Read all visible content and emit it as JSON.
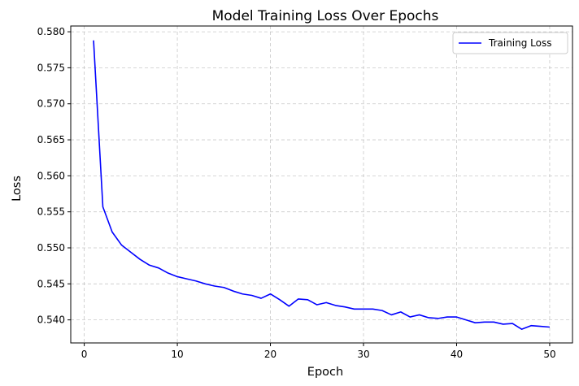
{
  "chart_data": {
    "type": "line",
    "title": "Model Training Loss Over Epochs",
    "xlabel": "Epoch",
    "ylabel": "Loss",
    "xlim": [
      -1.45,
      52.45
    ],
    "ylim": [
      0.5368,
      0.5808
    ],
    "xticks": [
      0,
      10,
      20,
      30,
      40,
      50
    ],
    "yticks": [
      0.54,
      0.545,
      0.55,
      0.555,
      0.56,
      0.565,
      0.57,
      0.575,
      0.58
    ],
    "ytick_labels": [
      "0.540",
      "0.545",
      "0.550",
      "0.555",
      "0.560",
      "0.565",
      "0.570",
      "0.575",
      "0.580"
    ],
    "grid": true,
    "legend_position": "top-right",
    "series": [
      {
        "name": "Training Loss",
        "color": "#0000ff",
        "x": [
          1,
          2,
          3,
          4,
          5,
          6,
          7,
          8,
          9,
          10,
          11,
          12,
          13,
          14,
          15,
          16,
          17,
          18,
          19,
          20,
          21,
          22,
          23,
          24,
          25,
          26,
          27,
          28,
          29,
          30,
          31,
          32,
          33,
          34,
          35,
          36,
          37,
          38,
          39,
          40,
          41,
          42,
          43,
          44,
          45,
          46,
          47,
          48,
          49,
          50
        ],
        "values": [
          0.5788,
          0.5557,
          0.5522,
          0.5504,
          0.5494,
          0.5484,
          0.5476,
          0.5472,
          0.5465,
          0.546,
          0.5457,
          0.5454,
          0.545,
          0.5447,
          0.5445,
          0.544,
          0.5436,
          0.5434,
          0.543,
          0.5436,
          0.5428,
          0.5419,
          0.5429,
          0.5428,
          0.5421,
          0.5424,
          0.542,
          0.5418,
          0.5415,
          0.5415,
          0.5415,
          0.5413,
          0.5407,
          0.5411,
          0.5404,
          0.5407,
          0.5403,
          0.5402,
          0.5404,
          0.5404,
          0.54,
          0.5396,
          0.5397,
          0.5397,
          0.5394,
          0.5395,
          0.5387,
          0.5392,
          0.5391,
          0.539
        ]
      }
    ]
  }
}
